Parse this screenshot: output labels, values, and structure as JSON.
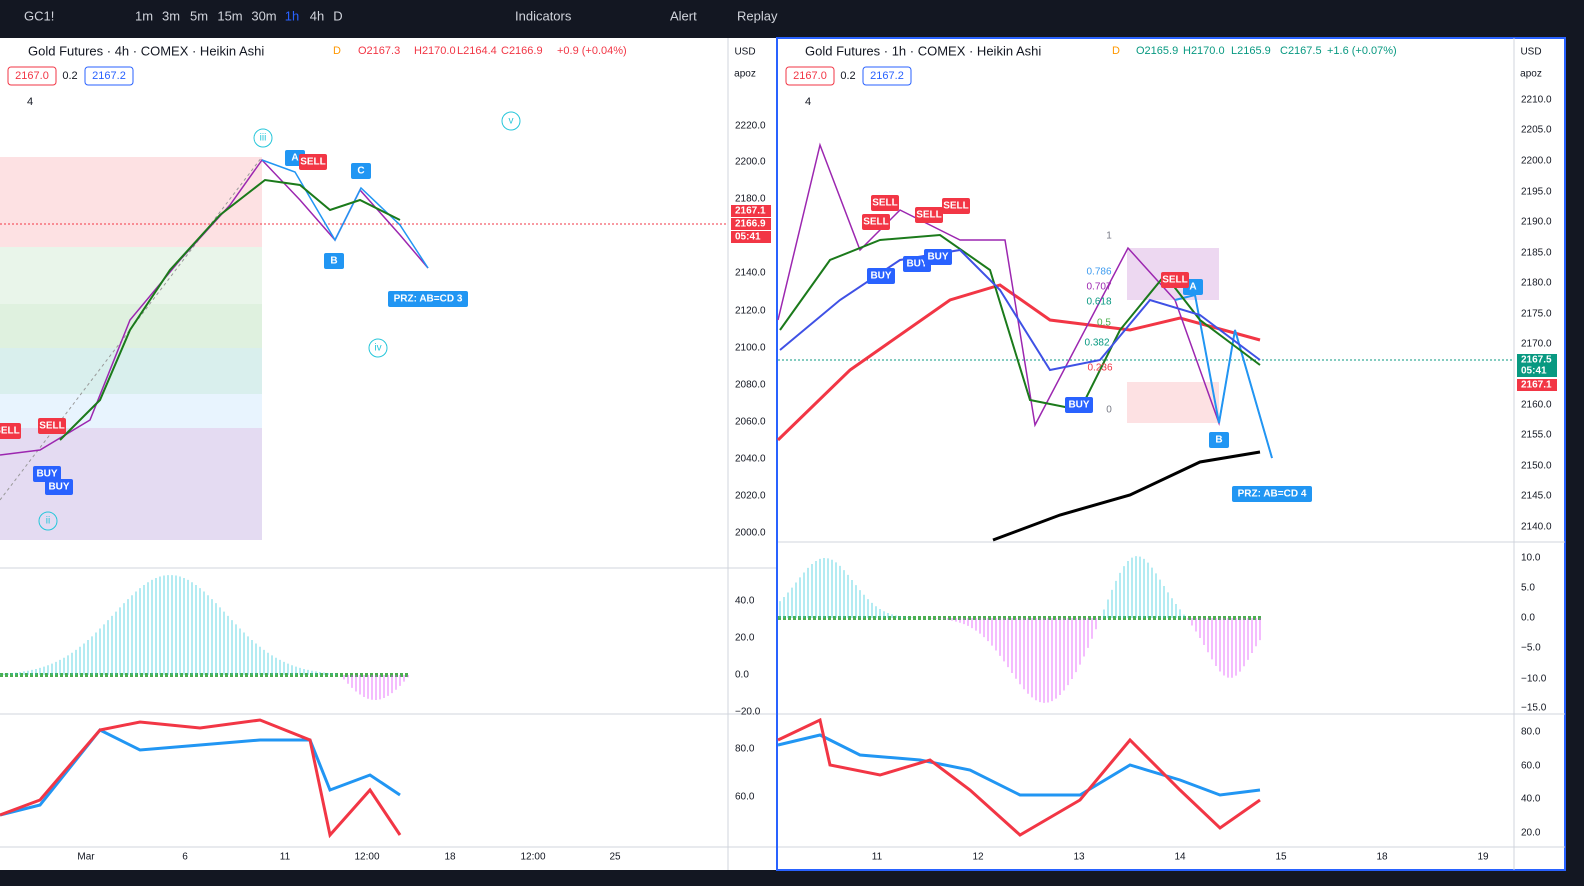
{
  "toolbar": {
    "symbol": "GC1!",
    "intervals": [
      "1m",
      "3m",
      "5m",
      "15m",
      "30m",
      "1h",
      "4h",
      "D"
    ],
    "indicators": "Indicators",
    "alert": "Alert",
    "replay": "Replay"
  },
  "panels": [
    {
      "title": "Gold Futures · 4h · COMEX · Heikin Ashi",
      "flag": "D",
      "open": "O2167.3",
      "high": "H2170.0",
      "low": "L2164.4",
      "close": "C2166.9",
      "change": "+0.9 (+0.04%)",
      "bid": "2167.0",
      "spread": "0.2",
      "ask": "2167.2",
      "indicator_count": "4",
      "currency": "USD",
      "scale_mode": "apoz",
      "price_axis": [
        "2220.0",
        "2200.0",
        "2180.0",
        "2140.0",
        "2120.0",
        "2100.0",
        "2080.0",
        "2060.0",
        "2040.0",
        "2020.0",
        "2000.0"
      ],
      "price_tags": [
        "2167.1",
        "2166.9",
        "05:41"
      ],
      "osc1_axis": [
        "40.0",
        "20.0",
        "0.0",
        "−20.0"
      ],
      "osc2_axis": [
        "80.0",
        "60.0"
      ],
      "time_axis": [
        "Mar",
        "6",
        "11",
        "12:00",
        "18",
        "12:00",
        "25"
      ],
      "wave_labels": [
        "iii",
        "v",
        "iv",
        "ii"
      ],
      "pattern_labels": [
        "A",
        "B",
        "C"
      ],
      "signal_labels": [
        "SELL",
        "SELL",
        "SELL",
        "BUY",
        "BUY"
      ],
      "prz": "PRZ: AB=CD 3"
    },
    {
      "title": "Gold Futures · 1h · COMEX · Heikin Ashi",
      "flag": "D",
      "open": "O2165.9",
      "high": "H2170.0",
      "low": "L2165.9",
      "close": "C2167.5",
      "change": "+1.6 (+0.07%)",
      "bid": "2167.0",
      "spread": "0.2",
      "ask": "2167.2",
      "indicator_count": "4",
      "currency": "USD",
      "scale_mode": "apoz",
      "price_axis": [
        "2210.0",
        "2205.0",
        "2200.0",
        "2195.0",
        "2190.0",
        "2185.0",
        "2180.0",
        "2175.0",
        "2170.0",
        "2160.0",
        "2155.0",
        "2150.0",
        "2145.0",
        "2140.0"
      ],
      "price_tags": [
        "2167.5",
        "05:41",
        "2167.1"
      ],
      "osc1_axis": [
        "10.0",
        "5.0",
        "0.0",
        "−5.0",
        "−10.0",
        "−15.0"
      ],
      "osc2_axis": [
        "80.0",
        "60.0",
        "40.0",
        "20.0"
      ],
      "time_axis": [
        "11",
        "12",
        "13",
        "14",
        "15",
        "18",
        "19"
      ],
      "fib_labels": [
        "1",
        "0.786",
        "0.707",
        "0.618",
        "0.5",
        "0.382",
        "0.236",
        "0"
      ],
      "pattern_labels": [
        "A",
        "B"
      ],
      "signal_labels": [
        "SELL",
        "SELL",
        "SELL",
        "SELL",
        "BUY",
        "BUY",
        "BUY",
        "BUY",
        "SELL"
      ],
      "prz": "PRZ: AB=CD 4"
    }
  ]
}
